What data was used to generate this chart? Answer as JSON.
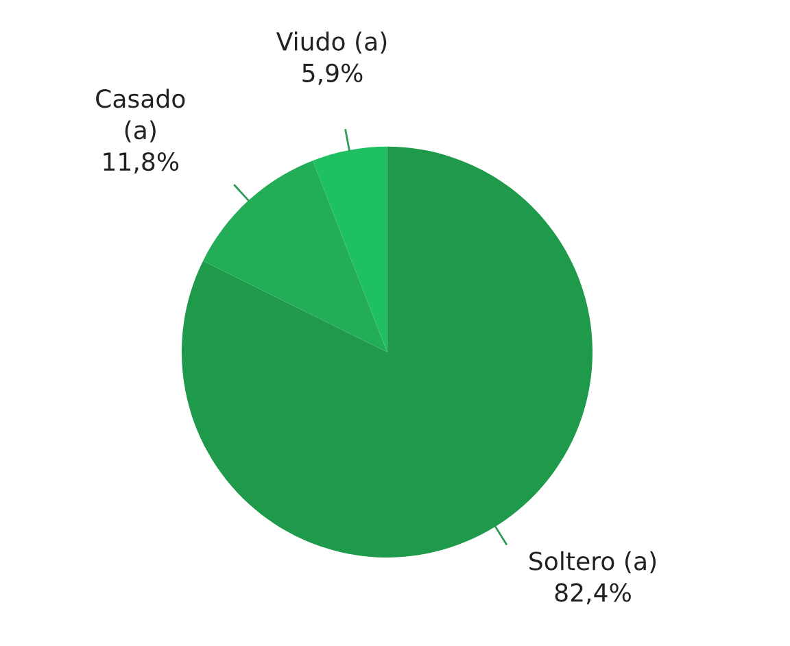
{
  "chart_data": {
    "type": "pie",
    "categories": [
      "Soltero (a)",
      "Casado\n(a)",
      "Viudo (a)"
    ],
    "values": [
      82.4,
      11.8,
      5.9
    ],
    "value_labels": [
      "82,4%",
      "11,8%",
      "5,9%"
    ],
    "colors": [
      "#1f9a4b",
      "#22ad56",
      "#1fc062"
    ],
    "legend": false
  }
}
